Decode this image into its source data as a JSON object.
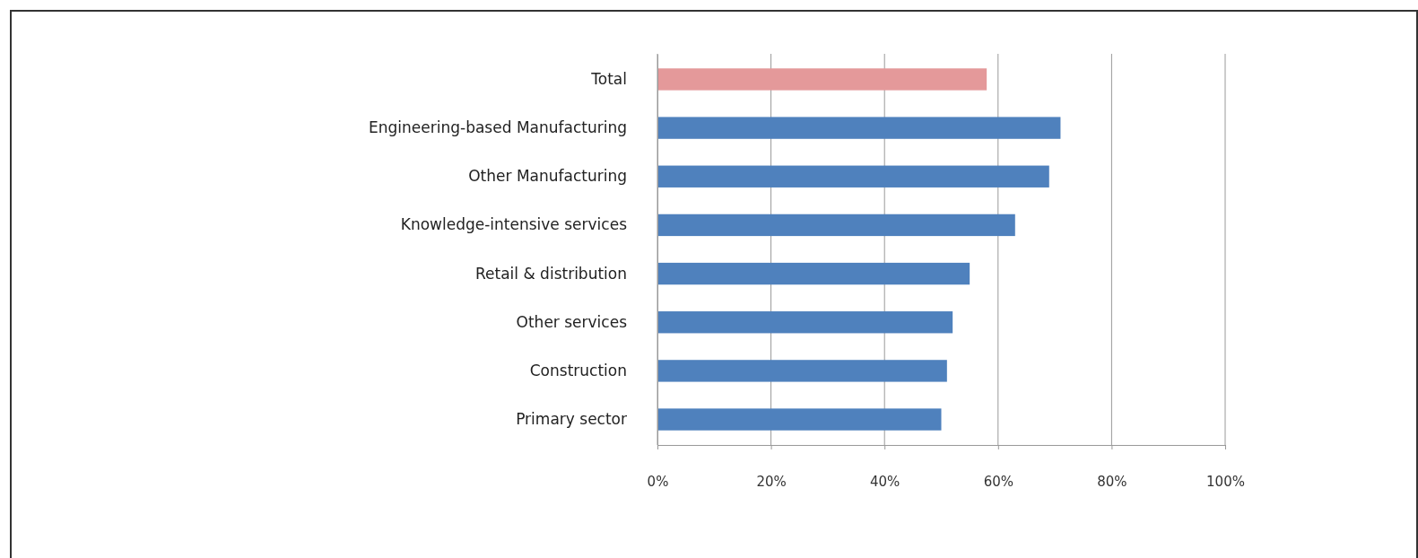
{
  "chart_data": {
    "type": "bar",
    "orientation": "horizontal",
    "categories": [
      "Total",
      "Engineering-based Manufacturing",
      "Other Manufacturing",
      "Knowledge-intensive services",
      "Retail & distribution",
      "Other services",
      "Construction",
      "Primary sector"
    ],
    "values": [
      58,
      71,
      69,
      63,
      55,
      52,
      51,
      50
    ],
    "colors": [
      "#e4999a",
      "#4f81bd",
      "#4f81bd",
      "#4f81bd",
      "#4f81bd",
      "#4f81bd",
      "#4f81bd",
      "#4f81bd"
    ],
    "xlim": [
      0,
      100
    ],
    "xticks": [
      {
        "value": 0,
        "label": "0%"
      },
      {
        "value": 20,
        "label": "20%"
      },
      {
        "value": 40,
        "label": "40%"
      },
      {
        "value": 60,
        "label": "60%"
      },
      {
        "value": 80,
        "label": "80%"
      },
      {
        "value": 100,
        "label": "100%"
      }
    ],
    "grid": "x"
  }
}
